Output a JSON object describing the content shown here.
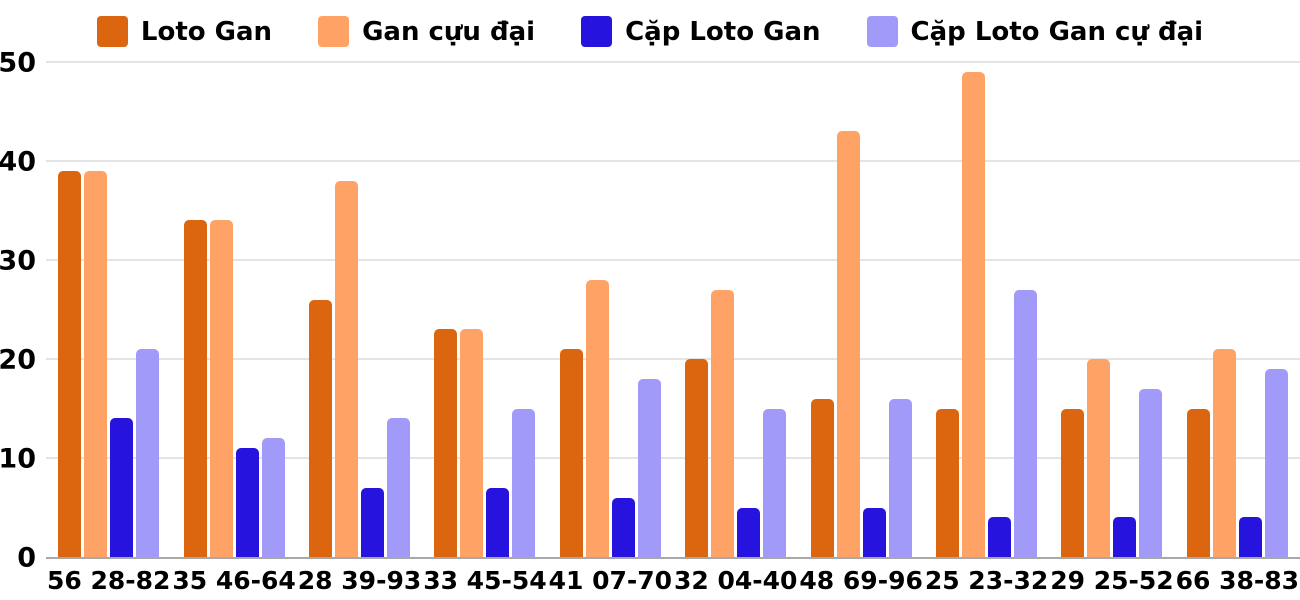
{
  "chart_data": {
    "type": "bar",
    "title": "",
    "xlabel": "",
    "ylabel": "",
    "ylim": [
      0,
      50
    ],
    "yticks": [
      0,
      10,
      20,
      30,
      40,
      50
    ],
    "grid": true,
    "legend_position": "top",
    "background_color": "#ffffff",
    "gridline_color": "#e4e4e4",
    "axis_line_color": "#a8a8a8",
    "text_color": "#000000",
    "categories": [
      "56 28-82",
      "35 46-64",
      "28 39-93",
      "33 45-54",
      "41 07-70",
      "32 04-40",
      "48 69-96",
      "25 23-32",
      "29 25-52",
      "66 38-83"
    ],
    "series": [
      {
        "name": "Loto Gan",
        "color": "#dc6510",
        "values": [
          39,
          34,
          26,
          23,
          21,
          20,
          16,
          15,
          15,
          15
        ]
      },
      {
        "name": "Gan cựu đại",
        "color": "#ffa266",
        "values": [
          39,
          34,
          38,
          23,
          28,
          27,
          43,
          49,
          20,
          21
        ]
      },
      {
        "name": "Cặp Loto Gan",
        "color": "#2713de",
        "values": [
          14,
          11,
          7,
          7,
          6,
          5,
          5,
          4,
          4,
          4
        ]
      },
      {
        "name": "Cặp Loto Gan cự đại",
        "color": "#a29af8",
        "values": [
          21,
          12,
          14,
          15,
          18,
          15,
          16,
          27,
          17,
          19
        ]
      }
    ]
  }
}
